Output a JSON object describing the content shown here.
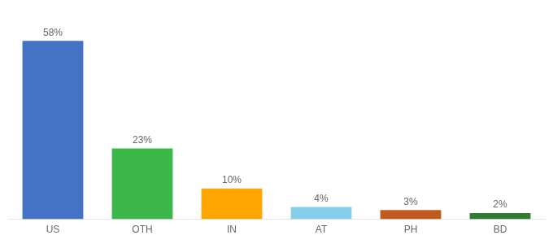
{
  "chart_data": {
    "type": "bar",
    "categories": [
      "US",
      "OTH",
      "IN",
      "AT",
      "PH",
      "BD"
    ],
    "values": [
      58,
      23,
      10,
      4,
      3,
      2
    ],
    "value_labels": [
      "58%",
      "23%",
      "10%",
      "4%",
      "3%",
      "2%"
    ],
    "colors": [
      "#4472C4",
      "#3CB84A",
      "#FFA500",
      "#87CEEB",
      "#C05A1F",
      "#2E7D32"
    ],
    "ylim": [
      0,
      66
    ],
    "grid": false,
    "data_labels": true,
    "tick_labels": "x"
  }
}
